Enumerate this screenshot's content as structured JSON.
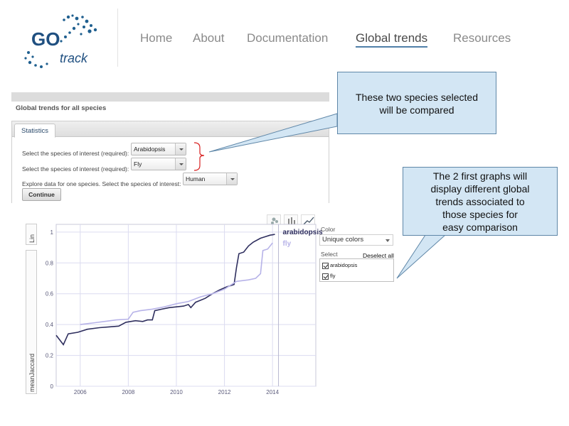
{
  "header": {
    "logo": {
      "text_go": "GO",
      "text_track": "track"
    },
    "nav": [
      {
        "label": "Home",
        "active": false
      },
      {
        "label": "About",
        "active": false
      },
      {
        "label": "Documentation",
        "active": false
      },
      {
        "label": "Global trends",
        "active": true
      },
      {
        "label": "Resources",
        "active": false
      }
    ]
  },
  "panel": {
    "title": "Global trends for all species",
    "tab_label": "Statistics",
    "species1_label": "Select the species of interest (required):",
    "species1_value": "Arabidopsis",
    "species2_label": "Select the species of interest (required):",
    "species2_value": "Fly",
    "explore_label": "Explore data for one species. Select the species of interest:",
    "explore_value": "Human",
    "continue_label": "Continue"
  },
  "callouts": {
    "top": "These two species selected\nwill be compared",
    "right": "The 2 first graphs will\ndisplay different global\ntrends associated to\nthose species for\neasy comparison"
  },
  "chart_controls": {
    "scale_label": "Lin",
    "y_metric_label": "meanJaccard"
  },
  "right_panel": {
    "color_label": "Color",
    "color_value": "Unique colors",
    "select_label": "Select",
    "deselect_label": "Deselect all",
    "series": [
      {
        "label": "arabidopsis",
        "checked": true
      },
      {
        "label": "fly",
        "checked": true
      }
    ]
  },
  "colors": {
    "arabidopsis": "#2e2e5e",
    "fly": "#b7b3e8",
    "callout_fill": "#d3e6f4",
    "brace": "#d82020"
  },
  "chart_data": {
    "type": "line",
    "xlabel": "",
    "ylabel": "meanJaccard",
    "xlim": [
      2005,
      2015.8
    ],
    "ylim": [
      0,
      1.05
    ],
    "x_ticks": [
      2006,
      2008,
      2010,
      2012,
      2014
    ],
    "y_ticks": [
      0,
      0.2,
      0.4,
      0.6,
      0.8,
      1
    ],
    "series": [
      {
        "name": "arabidopsis",
        "color": "#2e2e5e",
        "points": [
          [
            2005.0,
            0.33
          ],
          [
            2005.3,
            0.27
          ],
          [
            2005.5,
            0.34
          ],
          [
            2005.9,
            0.35
          ],
          [
            2006.3,
            0.37
          ],
          [
            2006.8,
            0.38
          ],
          [
            2007.2,
            0.385
          ],
          [
            2007.6,
            0.39
          ],
          [
            2007.9,
            0.415
          ],
          [
            2008.3,
            0.425
          ],
          [
            2008.6,
            0.42
          ],
          [
            2008.8,
            0.43
          ],
          [
            2009.0,
            0.43
          ],
          [
            2009.1,
            0.49
          ],
          [
            2009.4,
            0.5
          ],
          [
            2009.7,
            0.51
          ],
          [
            2010.0,
            0.515
          ],
          [
            2010.3,
            0.52
          ],
          [
            2010.5,
            0.53
          ],
          [
            2010.6,
            0.51
          ],
          [
            2010.8,
            0.545
          ],
          [
            2011.2,
            0.57
          ],
          [
            2011.5,
            0.6
          ],
          [
            2011.8,
            0.625
          ],
          [
            2012.1,
            0.645
          ],
          [
            2012.3,
            0.655
          ],
          [
            2012.4,
            0.66
          ],
          [
            2012.5,
            0.77
          ],
          [
            2012.6,
            0.86
          ],
          [
            2012.8,
            0.87
          ],
          [
            2013.0,
            0.91
          ],
          [
            2013.2,
            0.935
          ],
          [
            2013.5,
            0.96
          ],
          [
            2013.7,
            0.97
          ],
          [
            2013.9,
            0.98
          ],
          [
            2014.1,
            0.985
          ]
        ]
      },
      {
        "name": "fly",
        "color": "#b7b3e8",
        "points": [
          [
            2006.0,
            0.4
          ],
          [
            2006.5,
            0.41
          ],
          [
            2007.0,
            0.42
          ],
          [
            2007.5,
            0.43
          ],
          [
            2008.0,
            0.435
          ],
          [
            2008.2,
            0.48
          ],
          [
            2008.5,
            0.49
          ],
          [
            2009.0,
            0.5
          ],
          [
            2009.5,
            0.515
          ],
          [
            2010.0,
            0.535
          ],
          [
            2010.5,
            0.55
          ],
          [
            2011.0,
            0.58
          ],
          [
            2011.5,
            0.6
          ],
          [
            2012.0,
            0.63
          ],
          [
            2012.5,
            0.68
          ],
          [
            2013.0,
            0.69
          ],
          [
            2013.3,
            0.7
          ],
          [
            2013.5,
            0.73
          ],
          [
            2013.6,
            0.88
          ],
          [
            2013.8,
            0.89
          ],
          [
            2014.0,
            0.93
          ]
        ]
      }
    ]
  }
}
